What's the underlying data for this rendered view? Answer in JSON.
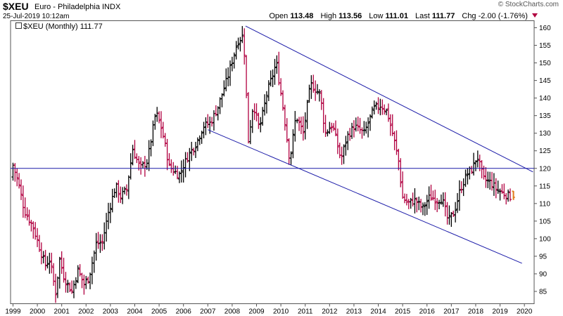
{
  "header": {
    "symbol": "$XEU",
    "description": "Euro - Philadelphia INDX",
    "datetime": "25-Jul-2019 10:12am",
    "open_label": "Open",
    "open": "113.48",
    "high_label": "High",
    "high": "113.56",
    "low_label": "Low",
    "low": "111.01",
    "last_label": "Last",
    "last": "111.77",
    "chg_label": "Chg",
    "chg": "-2.00 (-1.76%)",
    "watermark": "© StockCharts.com"
  },
  "legend": {
    "text": "$XEU (Monthly) 111.77"
  },
  "colors": {
    "up": "#000000",
    "down": "#b10040",
    "last_bar": "#e07b1a",
    "trendline": "#1a1aa8"
  },
  "chart_data": {
    "type": "bar",
    "subtype": "ohlc-monthly",
    "title": "$XEU Euro - Philadelphia INDX",
    "xlabel": "",
    "ylabel": "",
    "x_ticks": [
      "1999",
      "2000",
      "2001",
      "2002",
      "2003",
      "2004",
      "2005",
      "2006",
      "2007",
      "2008",
      "2009",
      "2010",
      "2011",
      "2012",
      "2013",
      "2014",
      "2015",
      "2016",
      "2017",
      "2018",
      "2019",
      "2020"
    ],
    "y_ticks": [
      85,
      90,
      95,
      100,
      105,
      110,
      115,
      120,
      125,
      130,
      135,
      140,
      145,
      150,
      155,
      160
    ],
    "xlim": [
      1998.9,
      2020.4
    ],
    "ylim": [
      81.5,
      162
    ],
    "grid": false,
    "y_axis_side": "right",
    "price_path": [
      [
        1999.0,
        117.5
      ],
      [
        1999.08,
        121.0
      ],
      [
        1999.3,
        116.0
      ],
      [
        1999.55,
        108.0
      ],
      [
        1999.9,
        103.5
      ],
      [
        2000.15,
        98.0
      ],
      [
        2000.4,
        92.5
      ],
      [
        2000.6,
        94.0
      ],
      [
        2000.83,
        84.5
      ],
      [
        2001.0,
        94.0
      ],
      [
        2001.2,
        88.5
      ],
      [
        2001.5,
        85.0
      ],
      [
        2001.75,
        91.0
      ],
      [
        2002.0,
        87.0
      ],
      [
        2002.2,
        89.0
      ],
      [
        2002.5,
        98.5
      ],
      [
        2002.75,
        99.0
      ],
      [
        2003.0,
        107.5
      ],
      [
        2003.3,
        115.0
      ],
      [
        2003.5,
        112.0
      ],
      [
        2003.75,
        114.0
      ],
      [
        2004.0,
        125.5
      ],
      [
        2004.3,
        120.0
      ],
      [
        2004.6,
        122.0
      ],
      [
        2004.95,
        136.0
      ],
      [
        2005.2,
        131.0
      ],
      [
        2005.5,
        120.5
      ],
      [
        2005.9,
        118.0
      ],
      [
        2006.3,
        124.0
      ],
      [
        2006.6,
        127.0
      ],
      [
        2006.9,
        132.0
      ],
      [
        2007.2,
        133.0
      ],
      [
        2007.5,
        137.5
      ],
      [
        2007.9,
        146.0
      ],
      [
        2008.3,
        156.0
      ],
      [
        2008.55,
        158.0
      ],
      [
        2008.75,
        128.0
      ],
      [
        2008.95,
        138.5
      ],
      [
        2009.2,
        131.0
      ],
      [
        2009.5,
        141.0
      ],
      [
        2009.9,
        150.0
      ],
      [
        2010.2,
        136.0
      ],
      [
        2010.45,
        122.0
      ],
      [
        2010.7,
        135.0
      ],
      [
        2011.0,
        130.0
      ],
      [
        2011.3,
        144.0
      ],
      [
        2011.7,
        141.0
      ],
      [
        2011.9,
        130.0
      ],
      [
        2012.2,
        132.5
      ],
      [
        2012.55,
        122.5
      ],
      [
        2012.8,
        129.0
      ],
      [
        2013.1,
        132.0
      ],
      [
        2013.5,
        130.0
      ],
      [
        2013.9,
        137.0
      ],
      [
        2014.2,
        138.0
      ],
      [
        2014.45,
        136.0
      ],
      [
        2014.7,
        129.0
      ],
      [
        2014.95,
        121.0
      ],
      [
        2015.05,
        112.0
      ],
      [
        2015.3,
        110.0
      ],
      [
        2015.6,
        111.0
      ],
      [
        2015.9,
        108.5
      ],
      [
        2016.2,
        112.0
      ],
      [
        2016.5,
        111.0
      ],
      [
        2016.7,
        111.5
      ],
      [
        2016.95,
        105.0
      ],
      [
        2017.2,
        107.5
      ],
      [
        2017.45,
        114.0
      ],
      [
        2017.7,
        118.0
      ],
      [
        2017.95,
        120.0
      ],
      [
        2018.15,
        123.5
      ],
      [
        2018.4,
        117.0
      ],
      [
        2018.7,
        116.0
      ],
      [
        2018.95,
        114.0
      ],
      [
        2019.2,
        113.0
      ],
      [
        2019.5,
        112.0
      ]
    ],
    "last_bar": {
      "x": 2019.55,
      "open": 113.48,
      "high": 113.56,
      "low": 111.01,
      "close": 111.77
    },
    "annotations": [
      {
        "type": "trendline",
        "from": [
          2008.55,
          160.5
        ],
        "to": [
          2020.35,
          119.0
        ]
      },
      {
        "type": "trendline",
        "from": [
          2007.0,
          131.0
        ],
        "to": [
          2019.9,
          93.0
        ]
      },
      {
        "type": "hline",
        "y": 120
      }
    ]
  }
}
